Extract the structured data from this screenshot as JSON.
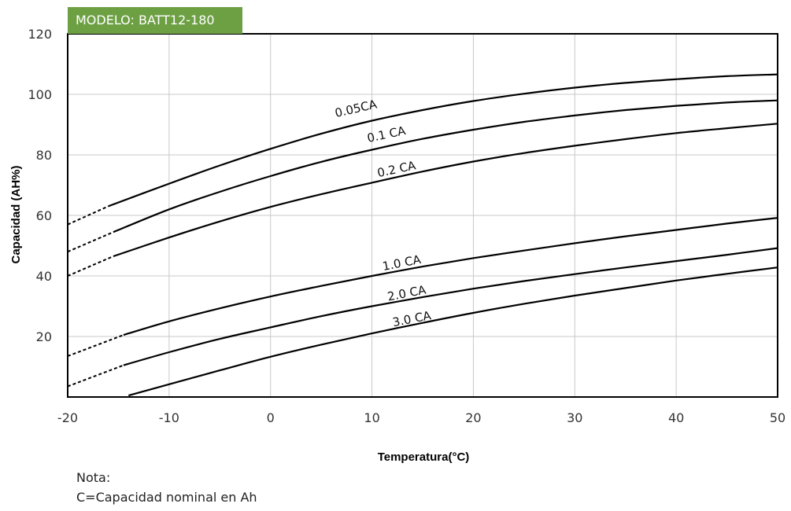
{
  "header": {
    "model_label": "MODELO: BATT12-180"
  },
  "chart_data": {
    "type": "line",
    "xlabel": "Temperatura(°C)",
    "ylabel": "Capacidad  (AH%)",
    "xlim": [
      -20,
      50
    ],
    "ylim": [
      0,
      120
    ],
    "x_ticks": [
      -20,
      -10,
      0,
      10,
      20,
      30,
      40,
      50
    ],
    "y_ticks": [
      20,
      40,
      60,
      80,
      100,
      120
    ],
    "grid": true,
    "series": [
      {
        "name": "0.05CA",
        "color": "#000000",
        "dashed_x": [
          -20,
          -16
        ],
        "x": [
          -20,
          -16,
          -10,
          -5,
          0,
          5,
          10,
          15,
          20,
          25,
          30,
          35,
          40,
          45,
          50
        ],
        "y": [
          57,
          63,
          70.5,
          76.5,
          82,
          87,
          91.3,
          94.8,
          97.8,
          100.2,
          102.2,
          103.8,
          105,
          106,
          106.6
        ]
      },
      {
        "name": "0.1 CA",
        "color": "#000000",
        "dashed_x": [
          -20,
          -15.5
        ],
        "x": [
          -20,
          -15.5,
          -10,
          -5,
          0,
          5,
          10,
          15,
          20,
          25,
          30,
          35,
          40,
          45,
          50
        ],
        "y": [
          48,
          54.5,
          62,
          67.8,
          73,
          77.7,
          81.7,
          85.3,
          88.3,
          90.9,
          93,
          94.8,
          96.2,
          97.3,
          98
        ]
      },
      {
        "name": "0.2 CA",
        "color": "#000000",
        "dashed_x": [
          -20,
          -15.5
        ],
        "x": [
          -20,
          -15.5,
          -10,
          -5,
          0,
          5,
          10,
          15,
          20,
          25,
          30,
          35,
          40,
          45,
          50
        ],
        "y": [
          40,
          46.5,
          52.7,
          58,
          62.8,
          67,
          70.8,
          74.5,
          77.8,
          80.6,
          83,
          85.2,
          87.2,
          88.8,
          90.3
        ]
      },
      {
        "name": "1.0 CA",
        "color": "#000000",
        "dashed_x": [
          -20,
          -14.5
        ],
        "x": [
          -20,
          -14.5,
          -10,
          -5,
          0,
          5,
          10,
          15,
          20,
          25,
          30,
          35,
          40,
          45,
          50
        ],
        "y": [
          13.5,
          20.5,
          25,
          29.3,
          33.2,
          36.7,
          40,
          43.1,
          45.9,
          48.4,
          50.8,
          53.1,
          55.2,
          57.3,
          59.2
        ]
      },
      {
        "name": "2.0 CA",
        "color": "#000000",
        "dashed_x": [
          -20,
          -14.5
        ],
        "x": [
          -20,
          -14.5,
          -10,
          -5,
          0,
          5,
          10,
          15,
          20,
          25,
          30,
          35,
          40,
          45,
          50
        ],
        "y": [
          3.5,
          10.5,
          14.8,
          19.2,
          23,
          26.7,
          30,
          33,
          35.8,
          38.3,
          40.6,
          42.8,
          44.9,
          47,
          49.2
        ]
      },
      {
        "name": "3.0 CA",
        "color": "#000000",
        "dashed_x": [],
        "x": [
          -14,
          -10,
          -5,
          0,
          5,
          10,
          15,
          20,
          25,
          30,
          35,
          40,
          45,
          50
        ],
        "y": [
          0.5,
          4.2,
          8.8,
          13.3,
          17.3,
          21,
          24.5,
          27.8,
          30.8,
          33.5,
          36,
          38.5,
          40.7,
          42.8
        ]
      }
    ],
    "annotations": [
      {
        "text": "0.05CA",
        "x": 8.5,
        "y": 94,
        "angle": -13
      },
      {
        "text": "0.1 CA",
        "x": 11.5,
        "y": 85.5,
        "angle": -12
      },
      {
        "text": "0.2 CA",
        "x": 12.5,
        "y": 74,
        "angle": -12
      },
      {
        "text": "1.0 CA",
        "x": 13,
        "y": 43,
        "angle": -11
      },
      {
        "text": "2.0 CA",
        "x": 13.5,
        "y": 33,
        "angle": -11
      },
      {
        "text": "3.0 CA",
        "x": 14,
        "y": 24.5,
        "angle": -11
      }
    ]
  },
  "note": {
    "title": "Nota:",
    "line": "C=Capacidad nominal en Ah"
  }
}
